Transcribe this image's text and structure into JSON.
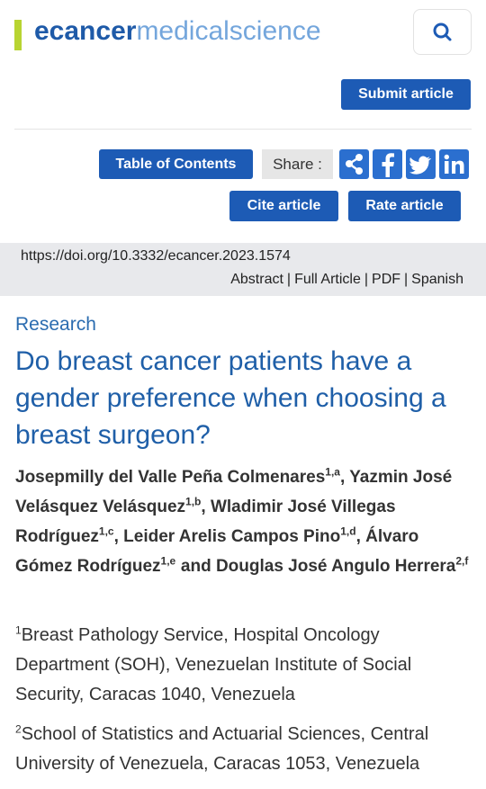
{
  "header": {
    "logo_a": "ecancer",
    "logo_b": "medicalscience"
  },
  "buttons": {
    "submit": "Submit article",
    "toc": "Table of Contents",
    "share_label": "Share :",
    "cite": "Cite article",
    "rate": "Rate article"
  },
  "doi": "https://doi.org/10.3332/ecancer.2023.1574",
  "links": {
    "items": [
      "Abstract",
      "Full Article",
      "PDF",
      "Spanish"
    ],
    "separator": "|"
  },
  "article": {
    "section": "Research",
    "title": "Do breast cancer patients have a gender preference when choosing a breast surgeon?",
    "authors": [
      {
        "name": "Josepmilly del Valle Peña Colmenares",
        "sup": "1,a",
        "sep": ","
      },
      {
        "name": "Yazmin José Velásquez Velásquez",
        "sup": "1,b",
        "sep": ","
      },
      {
        "name": "Wladimir José Villegas Rodríguez",
        "sup": "1,c",
        "sep": ","
      },
      {
        "name": "Leider Arelis Campos Pino",
        "sup": "1,d",
        "sep": ","
      },
      {
        "name": "Álvaro Gómez Rodríguez",
        "sup": "1,e",
        "sep": "and"
      },
      {
        "name": "Douglas José Angulo Herrera",
        "sup": "2,f"
      }
    ],
    "affiliations": [
      {
        "sup": "1",
        "text": "Breast Pathology Service, Hospital Oncology Department (SOH), Venezuelan Institute of Social Security, Caracas 1040, Venezuela"
      },
      {
        "sup": "2",
        "text": "School of Statistics and Actuarial Sciences, Central University of Venezuela, Caracas 1053, Venezuela"
      }
    ]
  }
}
